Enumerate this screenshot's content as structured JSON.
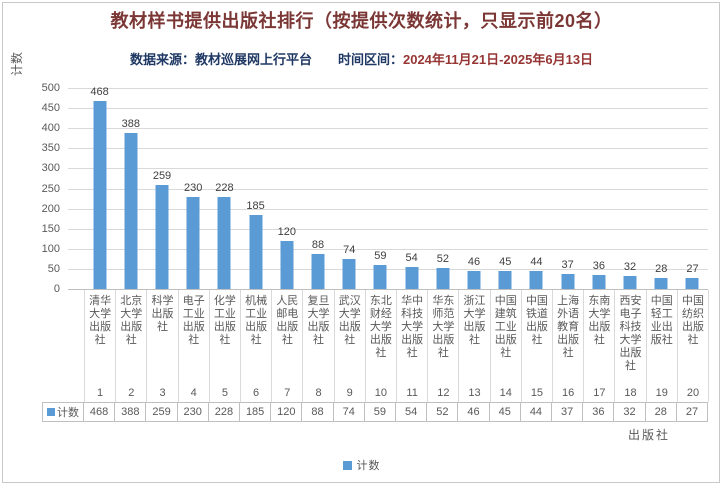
{
  "header": {
    "title": "教材样书提供出版社排行（按提供次数统计，只显示前20名）",
    "source_label": "数据来源：教材巡展网上行平台",
    "period_label": "时间区间：",
    "period_value": "2024年11月21日-2025年6月13日"
  },
  "axes": {
    "y_title": "计数",
    "x_title": "出版社"
  },
  "legend": {
    "label": "计数"
  },
  "table": {
    "row_label": "计数"
  },
  "colors": {
    "bar": "#5B9BD5",
    "title": "#7B3735",
    "subtitle": "#1F3864",
    "period_value": "#963634",
    "gridline": "#D9D9D9",
    "axis_line": "#BFBFBF",
    "text_gray": "#595959",
    "data_label": "#404040"
  },
  "chart_data": {
    "type": "bar",
    "title": "教材样书提供出版社排行（按提供次数统计，只显示前20名）",
    "subtitle": "数据来源：教材巡展网上行平台  时间区间：2024年11月21日-2025年6月13日",
    "categories": [
      "清华大学出版社",
      "北京大学出版社",
      "科学出版社",
      "电子工业出版社",
      "化学工业出版社",
      "机械工业出版社",
      "人民邮电出版社",
      "复旦大学出版社",
      "武汉大学出版社",
      "东北财经大学出版社",
      "华中科技大学出版社",
      "华东师范大学出版社",
      "浙江大学出版社",
      "中国建筑工业出版社",
      "中国铁道出版社",
      "上海外语教育出版社",
      "东南大学出版社",
      "西安电子科技大学出版社",
      "中国轻工业出版社",
      "中国纺织出版社"
    ],
    "ranks": [
      1,
      2,
      3,
      4,
      5,
      6,
      7,
      8,
      9,
      10,
      11,
      12,
      13,
      14,
      15,
      16,
      17,
      18,
      19,
      20
    ],
    "series": [
      {
        "name": "计数",
        "values": [
          468,
          388,
          259,
          230,
          228,
          185,
          120,
          88,
          74,
          59,
          54,
          52,
          46,
          45,
          44,
          37,
          36,
          32,
          28,
          27
        ]
      }
    ],
    "xlabel": "出版社",
    "ylabel": "计数",
    "ylim": [
      0,
      500
    ],
    "ytick_interval": 50,
    "grid": true,
    "legend_position": "bottom",
    "data_labels": true,
    "bar_color": "#5B9BD5"
  }
}
